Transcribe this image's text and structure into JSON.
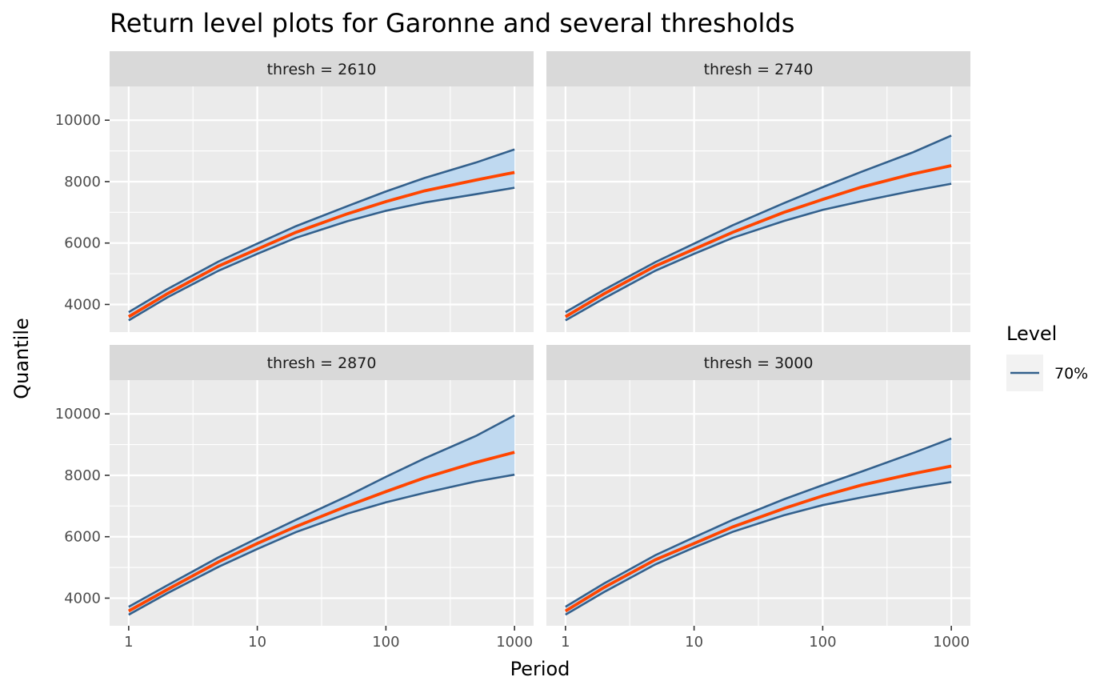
{
  "chart_data": {
    "type": "line",
    "title": "Return level plots for Garonne and several thresholds",
    "xlabel": "Period",
    "ylabel": "Quantile",
    "x_scale": "log10",
    "xlim": [
      1,
      1000
    ],
    "ylim": [
      3100,
      11100
    ],
    "x_ticks": [
      1,
      10,
      100,
      1000
    ],
    "x_tick_labels": [
      "1",
      "10",
      "100",
      "1000"
    ],
    "y_ticks": [
      4000,
      6000,
      8000,
      10000
    ],
    "y_tick_labels": [
      "4000",
      "6000",
      "8000",
      "10000"
    ],
    "grid": true,
    "colors": {
      "panel_bg": "#ebebeb",
      "strip_bg": "#d9d9d9",
      "band_fill": "#bfd9f0",
      "bound_line": "#33608c",
      "estimate_line": "#ff4500"
    },
    "legend": {
      "title": "Level",
      "position": "right",
      "items": [
        {
          "label": "70%",
          "color": "#33608c"
        }
      ]
    },
    "facets": [
      {
        "label": "thresh = 2610",
        "period": [
          1,
          2,
          5,
          10,
          20,
          50,
          100,
          200,
          500,
          1000
        ],
        "estimate": [
          3600,
          4350,
          5250,
          5800,
          6350,
          6950,
          7350,
          7700,
          8050,
          8300
        ],
        "upper": [
          3750,
          4500,
          5400,
          5980,
          6550,
          7200,
          7680,
          8120,
          8620,
          9050
        ],
        "lower": [
          3480,
          4230,
          5100,
          5650,
          6170,
          6710,
          7050,
          7320,
          7590,
          7800
        ]
      },
      {
        "label": "thresh = 2740",
        "period": [
          1,
          2,
          5,
          10,
          20,
          50,
          100,
          200,
          500,
          1000
        ],
        "estimate": [
          3600,
          4350,
          5250,
          5800,
          6350,
          7000,
          7420,
          7820,
          8250,
          8520
        ],
        "upper": [
          3750,
          4480,
          5380,
          5980,
          6580,
          7300,
          7820,
          8320,
          8950,
          9500
        ],
        "lower": [
          3480,
          4200,
          5100,
          5650,
          6170,
          6720,
          7080,
          7360,
          7700,
          7930
        ]
      },
      {
        "label": "thresh = 2870",
        "period": [
          1,
          2,
          5,
          10,
          20,
          50,
          100,
          200,
          500,
          1000
        ],
        "estimate": [
          3580,
          4280,
          5180,
          5780,
          6330,
          7000,
          7470,
          7920,
          8420,
          8750
        ],
        "upper": [
          3720,
          4420,
          5330,
          5950,
          6550,
          7320,
          7950,
          8550,
          9280,
          9950
        ],
        "lower": [
          3460,
          4160,
          5020,
          5600,
          6150,
          6750,
          7120,
          7430,
          7800,
          8020
        ]
      },
      {
        "label": "thresh = 3000",
        "period": [
          1,
          2,
          5,
          10,
          20,
          50,
          100,
          200,
          500,
          1000
        ],
        "estimate": [
          3580,
          4350,
          5250,
          5780,
          6320,
          6920,
          7330,
          7680,
          8050,
          8300
        ],
        "upper": [
          3720,
          4480,
          5400,
          5980,
          6550,
          7220,
          7680,
          8120,
          8720,
          9200
        ],
        "lower": [
          3460,
          4200,
          5100,
          5650,
          6160,
          6700,
          7030,
          7280,
          7580,
          7780
        ]
      }
    ]
  }
}
